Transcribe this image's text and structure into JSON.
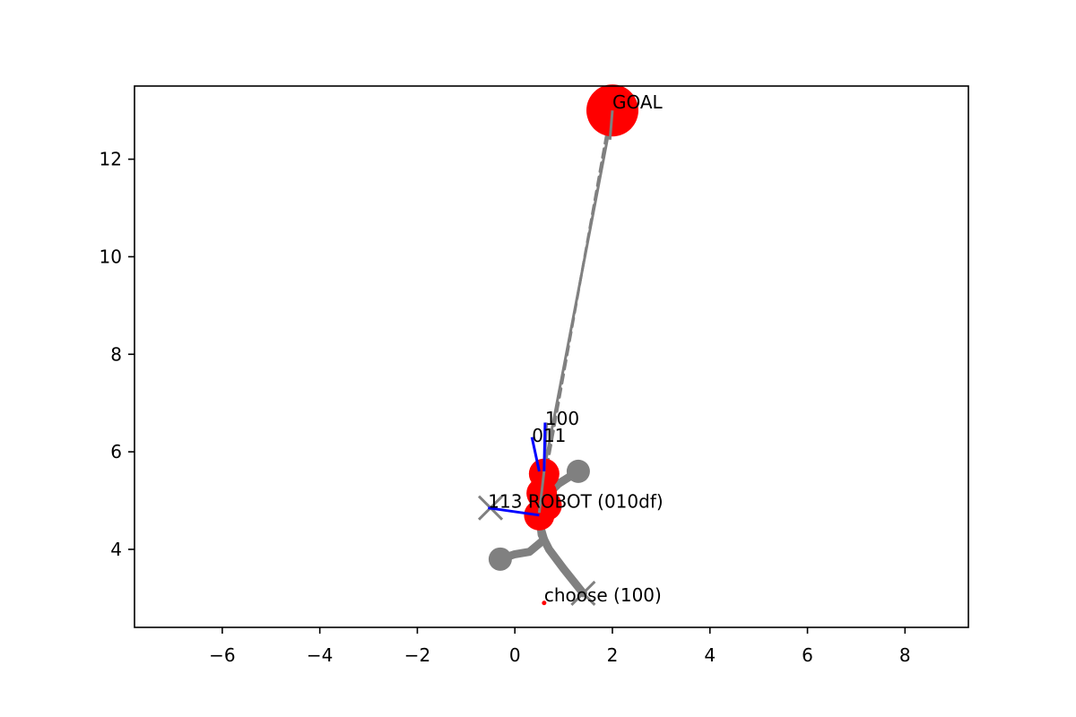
{
  "chart_data": {
    "type": "scatter",
    "title": "",
    "xlabel": "",
    "ylabel": "",
    "xlim": [
      -7.8,
      9.3
    ],
    "ylim": [
      2.4,
      13.5
    ],
    "xticks": [
      -6,
      -4,
      -2,
      0,
      2,
      4,
      6,
      8
    ],
    "yticks": [
      4,
      6,
      8,
      10,
      12
    ],
    "grid": false,
    "colors": {
      "target": "#ff0000",
      "path": "#808080",
      "heading": "#0000ff",
      "frame": "#000000"
    },
    "goal": {
      "x": 2.0,
      "y": 13.0,
      "label": "GOAL"
    },
    "robot_markers": [
      {
        "x": 0.6,
        "y": 5.55
      },
      {
        "x": 0.55,
        "y": 5.15
      },
      {
        "x": 0.65,
        "y": 4.9
      },
      {
        "x": 0.5,
        "y": 4.7
      }
    ],
    "choose_point": {
      "x": 0.6,
      "y": 2.9,
      "label": "choose (100)"
    },
    "goal_paths": [
      {
        "points": [
          [
            0.45,
            4.85
          ],
          [
            2.0,
            12.95
          ]
        ]
      },
      {
        "points": [
          [
            0.5,
            4.8
          ],
          [
            1.95,
            12.9
          ]
        ]
      }
    ],
    "paths": [
      {
        "points": [
          [
            0.5,
            4.75
          ],
          [
            0.55,
            4.3
          ],
          [
            0.7,
            4.0
          ],
          [
            1.0,
            3.6
          ],
          [
            1.4,
            3.1
          ]
        ]
      },
      {
        "points": [
          [
            0.45,
            4.7
          ],
          [
            0.6,
            4.2
          ],
          [
            0.3,
            3.95
          ],
          [
            0.0,
            3.9
          ],
          [
            -0.3,
            3.8
          ]
        ]
      },
      {
        "points": [
          [
            0.5,
            4.8
          ],
          [
            0.65,
            5.1
          ],
          [
            0.9,
            5.35
          ],
          [
            1.3,
            5.6
          ]
        ]
      }
    ],
    "path_end_dots": [
      {
        "x": -0.3,
        "y": 3.8
      },
      {
        "x": 1.3,
        "y": 5.6
      }
    ],
    "cross_markers": [
      {
        "x": -0.5,
        "y": 4.85
      },
      {
        "x": 1.4,
        "y": 3.1
      }
    ],
    "heading_lines": [
      {
        "points": [
          [
            0.5,
            4.7
          ],
          [
            -0.55,
            4.85
          ]
        ]
      },
      {
        "points": [
          [
            0.5,
            5.6
          ],
          [
            0.35,
            6.3
          ]
        ]
      },
      {
        "points": [
          [
            0.6,
            5.6
          ],
          [
            0.62,
            6.6
          ]
        ]
      }
    ],
    "annotations": [
      {
        "text": "011",
        "x": 0.35,
        "y": 6.2
      },
      {
        "text": "100",
        "x": 0.62,
        "y": 6.55
      },
      {
        "text": "113 ROBOT (010df)",
        "x": -0.55,
        "y": 4.85
      }
    ]
  }
}
